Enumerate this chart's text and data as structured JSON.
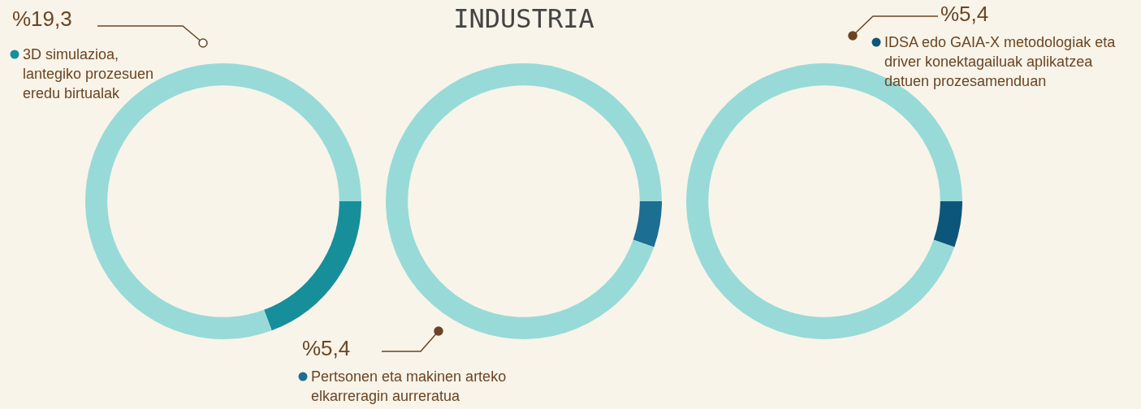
{
  "chart_data": [
    {
      "type": "donut",
      "categories": [
        "3D simulazioa, lantegiko prozesuen eredu birtualak",
        null
      ],
      "values": [
        19.3,
        80.7
      ],
      "colors": [
        "#168f9b",
        "#98dad8"
      ],
      "value_labels": [
        "%19,3",
        null
      ]
    },
    {
      "type": "donut",
      "title": "INDUSTRIA",
      "categories": [
        "Pertsonen eta makinen arteko elkarreragin aurreratua",
        null
      ],
      "values": [
        5.4,
        94.6
      ],
      "colors": [
        "#1d6e93",
        "#98dad8"
      ],
      "value_labels": [
        "%5,4",
        null
      ]
    },
    {
      "type": "donut",
      "categories": [
        "IDSA edo GAIA-X metodologiak eta driver konektagailuak aplikatzea datuen prozesamenduan",
        null
      ],
      "values": [
        5.4,
        94.6
      ],
      "colors": [
        "#0d567b",
        "#98dad8"
      ],
      "value_labels": [
        "%5,4",
        null
      ]
    }
  ]
}
